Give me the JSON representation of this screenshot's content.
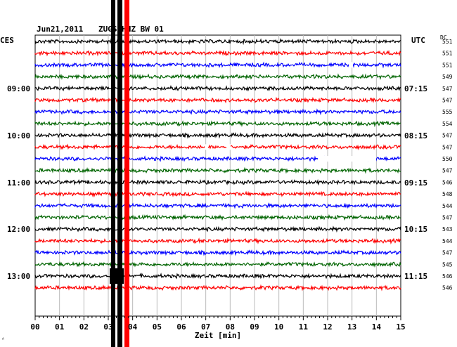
{
  "header": {
    "date": "Jun21,2011",
    "station": "ZUGS HHZ BW 01",
    "left_tz": "CES",
    "right_tz": "UTC",
    "dc_label": "DC"
  },
  "left_time_labels": [
    "09:00",
    "10:00",
    "11:00",
    "12:00",
    "13:00"
  ],
  "right_time_labels": [
    "07:15",
    "08:15",
    "09:15",
    "10:15",
    "11:15"
  ],
  "dc_values": [
    "551",
    "551",
    "551",
    "549",
    "547",
    "547",
    "555",
    "554",
    "547",
    "547",
    "550",
    "547",
    "546",
    "548",
    "544",
    "547",
    "543",
    "544",
    "547",
    "545",
    "546",
    "546"
  ],
  "x_axis": {
    "label": "Zeit [min]",
    "ticks": [
      "00",
      "01",
      "02",
      "03",
      "04",
      "05",
      "06",
      "07",
      "08",
      "09",
      "10",
      "11",
      "12",
      "13",
      "14",
      "15"
    ]
  },
  "corner_mark": "ᴬ",
  "trace_colors": [
    "#000000",
    "#ff0000",
    "#0000ff",
    "#006400"
  ],
  "colors": {
    "grid": "#bbbbbb",
    "background": "#ffffff"
  }
}
